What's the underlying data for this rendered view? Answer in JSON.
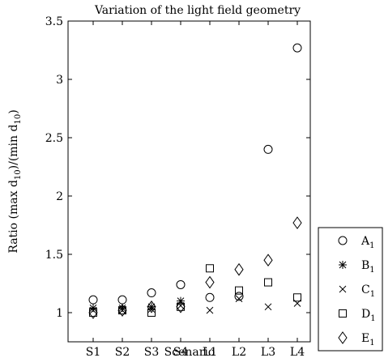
{
  "chart_data": {
    "type": "scatter",
    "title": "Variation of the light field geometry",
    "xlabel": "Scenario",
    "ylabel": {
      "main": "Ratio (max d",
      "sub1": "10",
      "mid": ")/(min d",
      "sub2": "10",
      "end": ")"
    },
    "categories": [
      "S1",
      "S2",
      "S3",
      "S4",
      "L1",
      "L2",
      "L3",
      "L4"
    ],
    "ylim": [
      0.75,
      3.5
    ],
    "yticks": [
      "1",
      "1.5",
      "2",
      "2.5",
      "3",
      "3.5"
    ],
    "grid": false,
    "legend_position": "right",
    "series": [
      {
        "name": "A",
        "sub": "1",
        "marker": "circle",
        "values": [
          1.11,
          1.11,
          1.17,
          1.24,
          1.13,
          1.14,
          2.4,
          3.27
        ]
      },
      {
        "name": "B",
        "sub": "1",
        "marker": "asterisk",
        "values": [
          1.04,
          1.04,
          1.05,
          1.1,
          null,
          null,
          null,
          null
        ]
      },
      {
        "name": "C",
        "sub": "1",
        "marker": "x",
        "values": [
          1.02,
          1.02,
          1.03,
          1.06,
          1.02,
          1.12,
          1.05,
          1.08
        ]
      },
      {
        "name": "D",
        "sub": "1",
        "marker": "square",
        "values": [
          1.0,
          1.02,
          1.0,
          1.05,
          1.38,
          1.19,
          1.26,
          1.13
        ]
      },
      {
        "name": "E",
        "sub": "1",
        "marker": "diamond",
        "values": [
          1.0,
          1.02,
          1.05,
          1.05,
          1.26,
          1.37,
          1.45,
          1.77
        ]
      }
    ]
  }
}
